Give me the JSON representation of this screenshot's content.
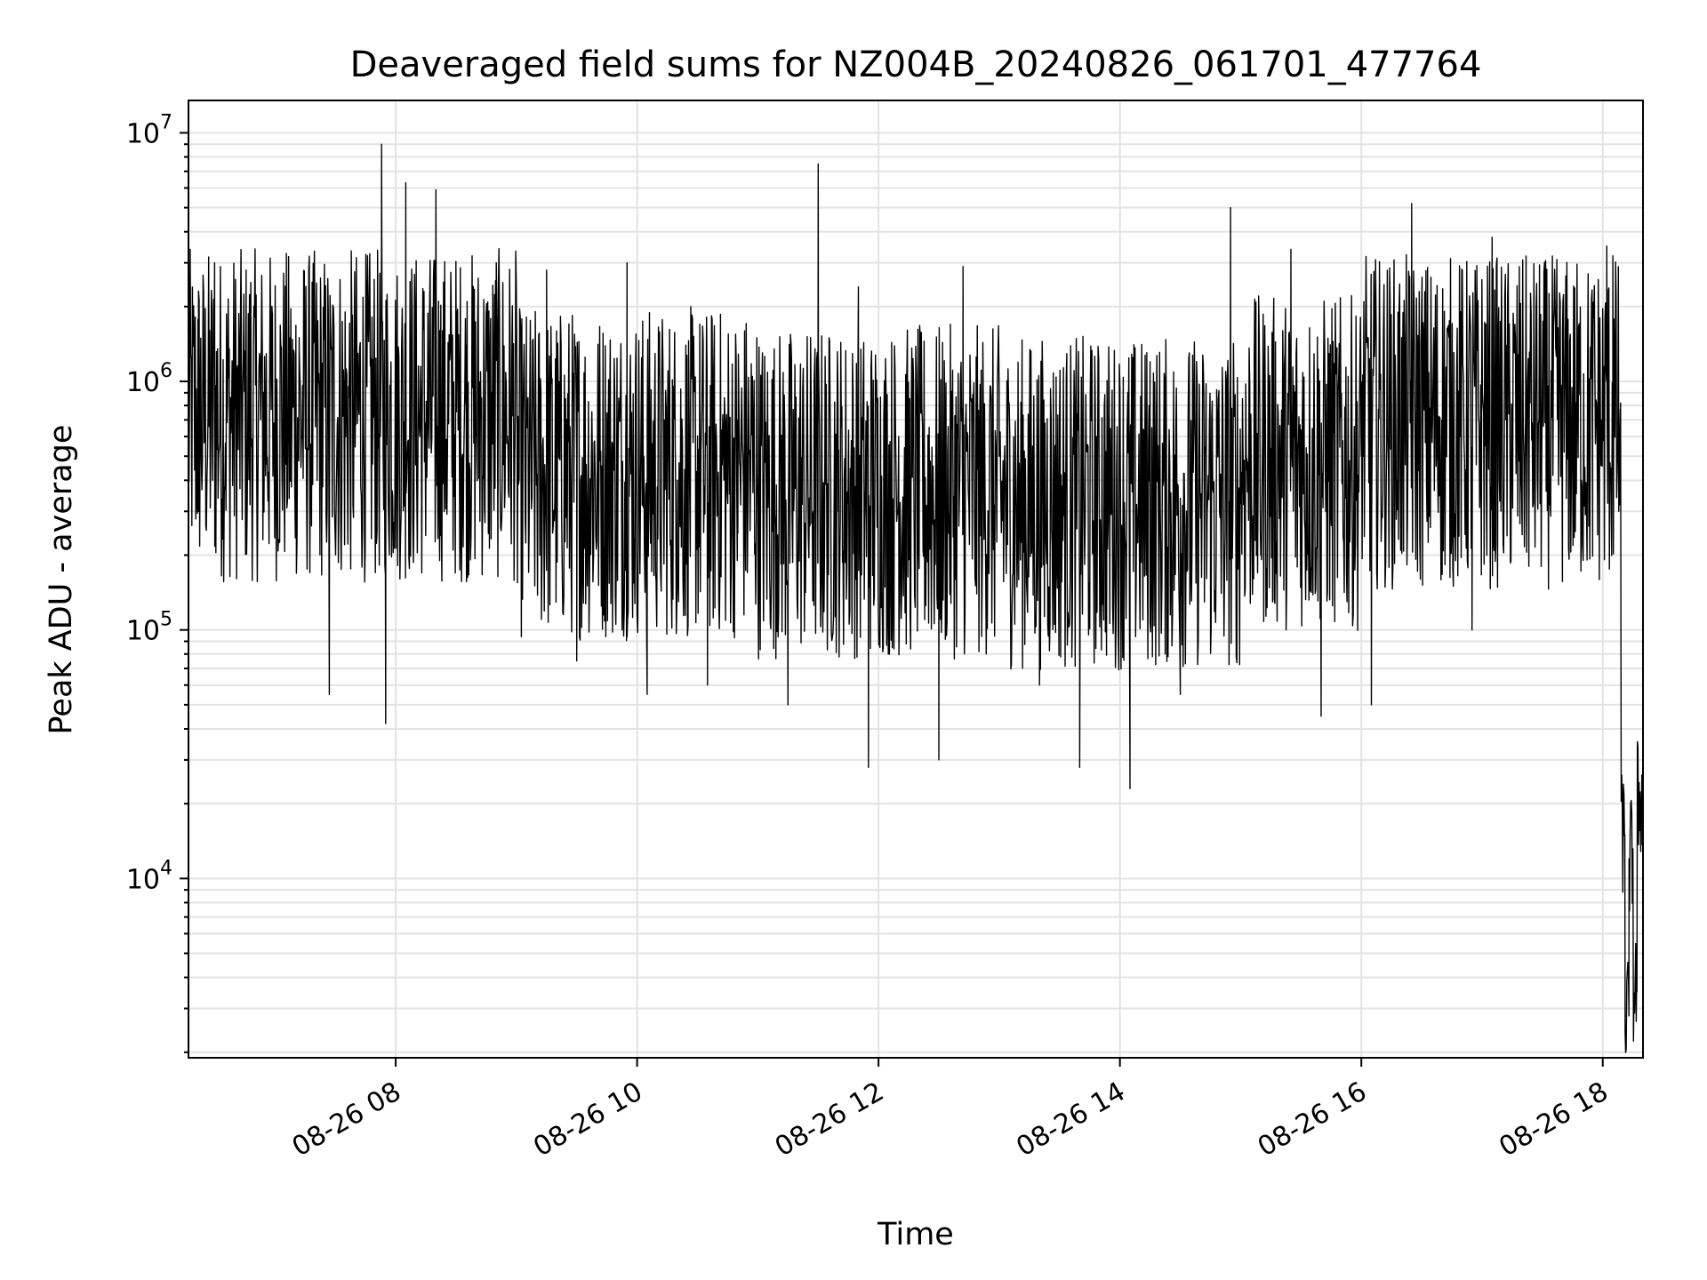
{
  "chart_data": {
    "type": "line",
    "title": "Deaveraged field sums for NZ004B_20240826_061701_477764",
    "xlabel": "Time",
    "ylabel": "Peak ADU - average",
    "x_axis": {
      "kind": "time",
      "start": "2024-08-26 06:17",
      "end": "2024-08-26 18:20",
      "major_ticks": [
        "2024-08-26 08:00",
        "2024-08-26 10:00",
        "2024-08-26 12:00",
        "2024-08-26 14:00",
        "2024-08-26 16:00",
        "2024-08-26 18:00"
      ],
      "tick_labels": [
        "08-26 08",
        "08-26 10",
        "08-26 12",
        "08-26 14",
        "08-26 16",
        "08-26 18"
      ]
    },
    "y_axis": {
      "scale": "log",
      "ylim": [
        1900,
        13500000
      ],
      "major_ticks": [
        10000,
        100000,
        1000000,
        10000000
      ],
      "tick_labels": [
        {
          "base": "10",
          "exp": "4"
        },
        {
          "base": "10",
          "exp": "5"
        },
        {
          "base": "10",
          "exp": "6"
        },
        {
          "base": "10",
          "exp": "7"
        }
      ]
    },
    "grid": true,
    "series": [
      {
        "color": "#000000",
        "note_points": "dense noisy trace; representative envelope values (x = time, y = Peak ADU - average)",
        "points": [
          {
            "x": "06:17",
            "y": 900000
          },
          {
            "x": "06:22",
            "y": 300000
          },
          {
            "x": "06:30",
            "y": 3000000
          },
          {
            "x": "06:40",
            "y": 800000
          },
          {
            "x": "06:48",
            "y": 2500000
          },
          {
            "x": "07:00",
            "y": 600000
          },
          {
            "x": "07:12",
            "y": 1500000
          },
          {
            "x": "07:27",
            "y": 55000
          },
          {
            "x": "07:40",
            "y": 900000
          },
          {
            "x": "07:55",
            "y": 42000
          },
          {
            "x": "08:00",
            "y": 1200000
          },
          {
            "x": "08:12",
            "y": 600000
          },
          {
            "x": "08:22",
            "y": 1600000
          },
          {
            "x": "07:53",
            "y": 9000000
          },
          {
            "x": "08:05",
            "y": 6300000
          },
          {
            "x": "08:20",
            "y": 5900000
          },
          {
            "x": "08:35",
            "y": 1400000
          },
          {
            "x": "08:50",
            "y": 3000000
          },
          {
            "x": "09:05",
            "y": 900000
          },
          {
            "x": "09:15",
            "y": 2800000
          },
          {
            "x": "09:30",
            "y": 75000
          },
          {
            "x": "09:45",
            "y": 600000
          },
          {
            "x": "09:55",
            "y": 3000000
          },
          {
            "x": "10:05",
            "y": 55000
          },
          {
            "x": "10:20",
            "y": 400000
          },
          {
            "x": "10:35",
            "y": 60000
          },
          {
            "x": "10:50",
            "y": 700000
          },
          {
            "x": "11:00",
            "y": 300000
          },
          {
            "x": "11:15",
            "y": 50000
          },
          {
            "x": "11:28",
            "y": 1000000
          },
          {
            "x": "11:30",
            "y": 7500000
          },
          {
            "x": "11:40",
            "y": 300000
          },
          {
            "x": "11:50",
            "y": 2400000
          },
          {
            "x": "11:55",
            "y": 28000
          },
          {
            "x": "12:10",
            "y": 600000
          },
          {
            "x": "12:30",
            "y": 30000
          },
          {
            "x": "12:42",
            "y": 2900000
          },
          {
            "x": "13:00",
            "y": 500000
          },
          {
            "x": "13:20",
            "y": 60000
          },
          {
            "x": "13:40",
            "y": 28000
          },
          {
            "x": "13:55",
            "y": 300000
          },
          {
            "x": "14:05",
            "y": 23000
          },
          {
            "x": "14:15",
            "y": 1200000
          },
          {
            "x": "14:30",
            "y": 55000
          },
          {
            "x": "14:45",
            "y": 400000
          },
          {
            "x": "14:55",
            "y": 5000000
          },
          {
            "x": "15:10",
            "y": 200000
          },
          {
            "x": "15:25",
            "y": 3400000
          },
          {
            "x": "15:40",
            "y": 45000
          },
          {
            "x": "15:55",
            "y": 1500000
          },
          {
            "x": "16:00",
            "y": 500000
          },
          {
            "x": "16:05",
            "y": 50000
          },
          {
            "x": "16:20",
            "y": 1500000
          },
          {
            "x": "16:25",
            "y": 5200000
          },
          {
            "x": "16:40",
            "y": 700000
          },
          {
            "x": "16:55",
            "y": 100000
          },
          {
            "x": "17:05",
            "y": 3800000
          },
          {
            "x": "17:20",
            "y": 900000
          },
          {
            "x": "17:40",
            "y": 1600000
          },
          {
            "x": "17:55",
            "y": 800000
          },
          {
            "x": "18:02",
            "y": 3500000
          },
          {
            "x": "18:05",
            "y": 3200000
          },
          {
            "x": "18:08",
            "y": 300000
          },
          {
            "x": "18:11",
            "y": 15000
          },
          {
            "x": "18:13",
            "y": 2800
          },
          {
            "x": "18:15",
            "y": 12000
          },
          {
            "x": "18:17",
            "y": 3500
          },
          {
            "x": "18:19",
            "y": 21000
          }
        ]
      }
    ]
  }
}
